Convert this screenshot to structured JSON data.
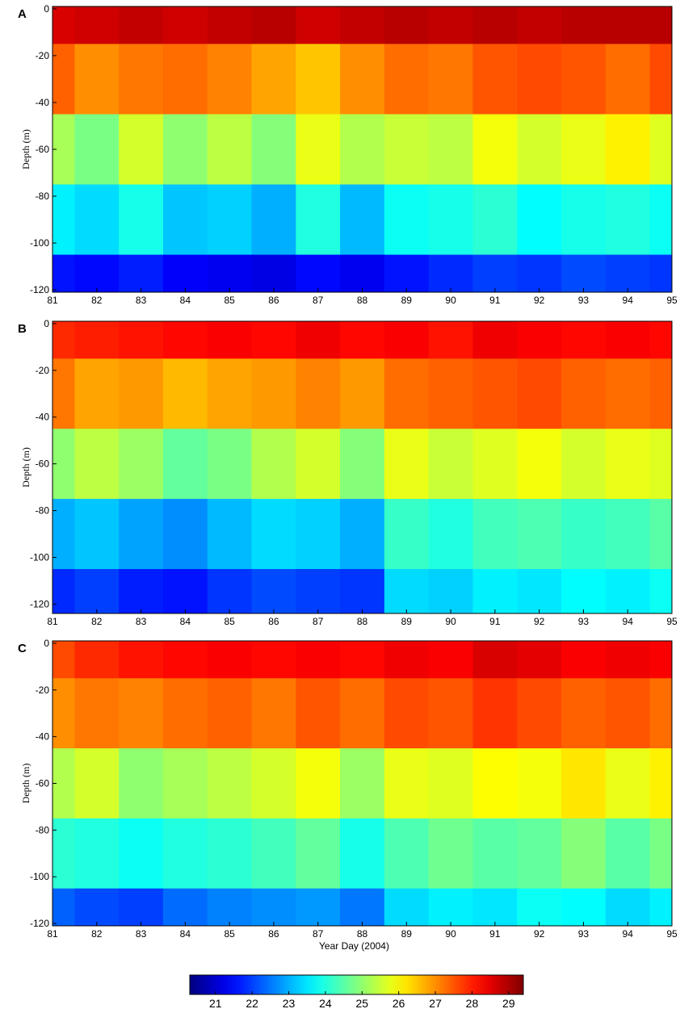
{
  "chart_data": [
    {
      "type": "contour",
      "label": "A",
      "ylabel": "Depth (m)",
      "colormap": "jet",
      "x": [
        81,
        82,
        83,
        84,
        85,
        86,
        87,
        88,
        89,
        90,
        91,
        92,
        93,
        94,
        95
      ],
      "y": [
        0,
        -30,
        -60,
        -90,
        -120
      ],
      "z": [
        [
          28.6,
          28.7,
          28.8,
          28.7,
          28.8,
          28.9,
          28.7,
          28.8,
          28.9,
          28.8,
          28.9,
          28.8,
          28.9,
          28.9,
          28.9
        ],
        [
          27.4,
          27.0,
          27.2,
          27.3,
          27.1,
          26.8,
          26.5,
          27.0,
          27.3,
          27.2,
          27.5,
          27.6,
          27.5,
          27.3,
          27.6
        ],
        [
          25.2,
          24.8,
          25.6,
          25.0,
          25.4,
          24.9,
          25.8,
          25.3,
          25.5,
          25.4,
          25.9,
          25.6,
          25.8,
          26.1,
          25.7
        ],
        [
          23.6,
          23.4,
          23.9,
          23.2,
          23.3,
          23.0,
          24.0,
          23.1,
          23.8,
          23.9,
          24.1,
          23.7,
          23.9,
          24.0,
          23.8
        ],
        [
          21.6,
          21.5,
          21.7,
          21.4,
          21.3,
          21.2,
          21.5,
          21.3,
          21.6,
          21.8,
          22.0,
          21.9,
          22.1,
          22.0,
          21.9
        ]
      ],
      "xlim": [
        81,
        95
      ],
      "ylim": [
        -121,
        1
      ],
      "xticks": [
        81,
        82,
        83,
        84,
        85,
        86,
        87,
        88,
        89,
        90,
        91,
        92,
        93,
        94,
        95
      ],
      "yticks": [
        0,
        -20,
        -40,
        -60,
        -80,
        -100,
        -120
      ]
    },
    {
      "type": "contour",
      "label": "B",
      "ylabel": "Depth (m)",
      "colormap": "jet",
      "x": [
        81,
        82,
        83,
        84,
        85,
        86,
        87,
        88,
        89,
        90,
        91,
        92,
        93,
        94,
        95
      ],
      "y": [
        0,
        -30,
        -60,
        -90,
        -120
      ],
      "z": [
        [
          27.9,
          28.0,
          28.1,
          28.2,
          28.3,
          28.2,
          28.4,
          28.2,
          28.3,
          28.1,
          28.4,
          28.3,
          28.2,
          28.3,
          28.2
        ],
        [
          27.2,
          26.8,
          26.9,
          26.6,
          26.8,
          26.9,
          27.1,
          26.9,
          27.3,
          27.4,
          27.5,
          27.6,
          27.4,
          27.3,
          27.4
        ],
        [
          25.0,
          25.4,
          25.1,
          24.6,
          24.8,
          25.3,
          25.6,
          24.9,
          25.8,
          25.5,
          25.7,
          25.9,
          25.6,
          25.8,
          25.7
        ],
        [
          23.0,
          23.2,
          22.9,
          22.7,
          23.1,
          23.4,
          23.3,
          23.0,
          24.2,
          24.0,
          24.3,
          24.4,
          24.2,
          24.3,
          24.5
        ],
        [
          21.8,
          22.0,
          21.7,
          21.6,
          21.9,
          22.1,
          22.0,
          21.9,
          23.4,
          23.3,
          23.6,
          23.5,
          23.7,
          23.6,
          23.8
        ]
      ],
      "xlim": [
        81,
        95
      ],
      "ylim": [
        -124,
        1
      ],
      "xticks": [
        81,
        82,
        83,
        84,
        85,
        86,
        87,
        88,
        89,
        90,
        91,
        92,
        93,
        94,
        95
      ],
      "yticks": [
        0,
        -20,
        -40,
        -60,
        -80,
        -100,
        -120
      ]
    },
    {
      "type": "contour",
      "label": "C",
      "ylabel": "Depth (m)",
      "xlabel": "Year Day (2004)",
      "colormap": "jet",
      "x": [
        81,
        82,
        83,
        84,
        85,
        86,
        87,
        88,
        89,
        90,
        91,
        92,
        93,
        94,
        95
      ],
      "y": [
        0,
        -30,
        -60,
        -90,
        -120
      ],
      "z": [
        [
          27.6,
          27.9,
          28.1,
          28.2,
          28.3,
          28.2,
          28.3,
          28.2,
          28.4,
          28.3,
          28.6,
          28.5,
          28.3,
          28.4,
          28.3
        ],
        [
          27.0,
          27.2,
          27.1,
          27.3,
          27.4,
          27.2,
          27.5,
          27.3,
          27.6,
          27.5,
          27.8,
          27.6,
          27.4,
          27.5,
          27.3
        ],
        [
          25.3,
          25.6,
          25.0,
          25.2,
          25.4,
          25.6,
          25.9,
          25.1,
          25.8,
          25.7,
          26.0,
          25.9,
          26.2,
          25.8,
          26.1
        ],
        [
          24.1,
          24.0,
          23.8,
          24.0,
          24.1,
          24.3,
          24.6,
          23.9,
          24.4,
          24.7,
          24.5,
          24.6,
          24.9,
          24.5,
          24.8
        ],
        [
          22.3,
          22.1,
          22.0,
          22.4,
          22.6,
          22.7,
          22.8,
          22.5,
          23.4,
          23.6,
          23.5,
          23.8,
          23.7,
          23.4,
          23.6
        ]
      ],
      "xlim": [
        81,
        95
      ],
      "ylim": [
        -121,
        1
      ],
      "xticks": [
        81,
        82,
        83,
        84,
        85,
        86,
        87,
        88,
        89,
        90,
        91,
        92,
        93,
        94,
        95
      ],
      "yticks": [
        0,
        -20,
        -40,
        -60,
        -80,
        -100,
        -120
      ]
    }
  ],
  "colorbar": {
    "colormap": "jet",
    "clim": [
      20.3,
      29.4
    ],
    "ticks": [
      21,
      22,
      23,
      24,
      25,
      26,
      27,
      28,
      29
    ]
  }
}
